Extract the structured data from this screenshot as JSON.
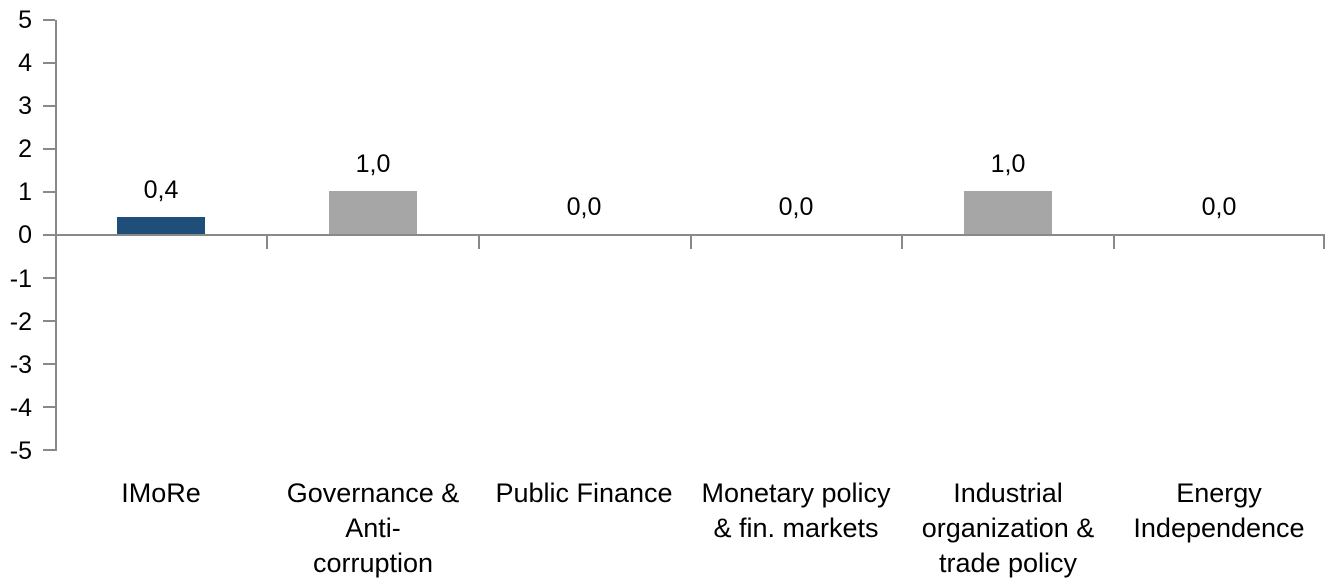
{
  "chart_data": {
    "type": "bar",
    "title": "",
    "xlabel": "",
    "ylabel": "",
    "categories": [
      "IMoRe",
      "Governance &\nAnti-\ncorruption",
      "Public Finance",
      "Monetary policy\n& fin. markets",
      "Industrial\norganization &\ntrade policy",
      "Energy\nIndependence"
    ],
    "values": [
      0.4,
      1.0,
      0.0,
      0.0,
      1.0,
      0.0
    ],
    "value_labels": [
      "0,4",
      "1,0",
      "0,0",
      "0,0",
      "1,0",
      "0,0"
    ],
    "bar_colors": [
      "#1F4E79",
      "#A6A6A6",
      "#A6A6A6",
      "#A6A6A6",
      "#A6A6A6",
      "#A6A6A6"
    ],
    "ylim": [
      -5,
      5
    ],
    "y_ticks": [
      5,
      4,
      3,
      2,
      1,
      0,
      -1,
      -2,
      -3,
      -4,
      -5
    ],
    "y_tick_labels": [
      "5",
      "4",
      "3",
      "2",
      "1",
      "0",
      "-1",
      "-2",
      "-3",
      "-4",
      "-5"
    ],
    "grid": false,
    "legend": false,
    "decimal_separator": ","
  },
  "colors": {
    "axis": "#898989",
    "imore_bar": "#1F4E79",
    "category_bar": "#A6A6A6",
    "text": "#000000",
    "background": "#FFFFFF"
  }
}
